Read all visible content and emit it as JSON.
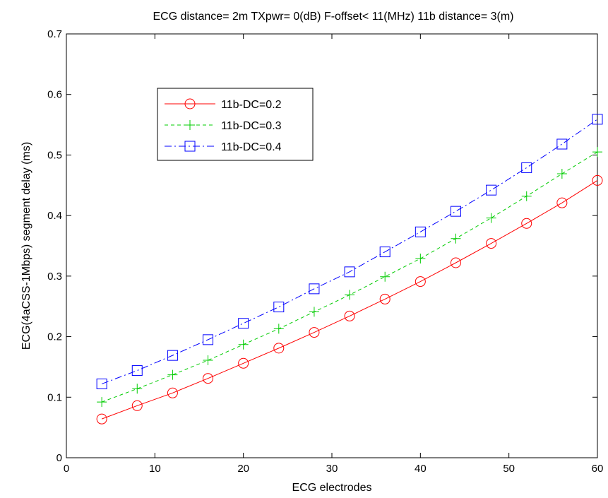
{
  "chart_data": {
    "type": "line",
    "title": "ECG distance= 2m   TXpwr= 0(dB)  F-offset< 11(MHz)  11b distance= 3(m)",
    "xlabel": "ECG electrodes",
    "ylabel": "ECG(4aCSS-1Mbps) segment delay (ms)",
    "xlim": [
      0,
      60
    ],
    "ylim": [
      0,
      0.7
    ],
    "xticks": [
      "0",
      "10",
      "20",
      "30",
      "40",
      "50",
      "60"
    ],
    "yticks": [
      "0",
      "0.1",
      "0.2",
      "0.3",
      "0.4",
      "0.5",
      "0.6",
      "0.7"
    ],
    "grid": false,
    "legend_position": "top-left",
    "x": [
      4,
      8,
      12,
      16,
      20,
      24,
      28,
      32,
      36,
      40,
      44,
      48,
      52,
      56,
      60
    ],
    "series": [
      {
        "name": "11b-DC=0.2",
        "color": "#ff0000",
        "line_style": "solid",
        "marker": "circle",
        "values": [
          0.064,
          0.086,
          0.107,
          0.131,
          0.156,
          0.181,
          0.207,
          0.234,
          0.262,
          0.291,
          0.322,
          0.354,
          0.387,
          0.421,
          0.458
        ]
      },
      {
        "name": "11b-DC=0.3",
        "color": "#00cc00",
        "line_style": "dashed",
        "marker": "plus",
        "values": [
          0.092,
          0.114,
          0.137,
          0.161,
          0.187,
          0.213,
          0.241,
          0.269,
          0.299,
          0.329,
          0.362,
          0.396,
          0.432,
          0.469,
          0.505
        ]
      },
      {
        "name": "11b-DC=0.4",
        "color": "#0000ff",
        "line_style": "dashdot",
        "marker": "square",
        "values": [
          0.122,
          0.144,
          0.169,
          0.195,
          0.222,
          0.249,
          0.279,
          0.307,
          0.34,
          0.373,
          0.407,
          0.442,
          0.479,
          0.518,
          0.559
        ]
      }
    ]
  }
}
